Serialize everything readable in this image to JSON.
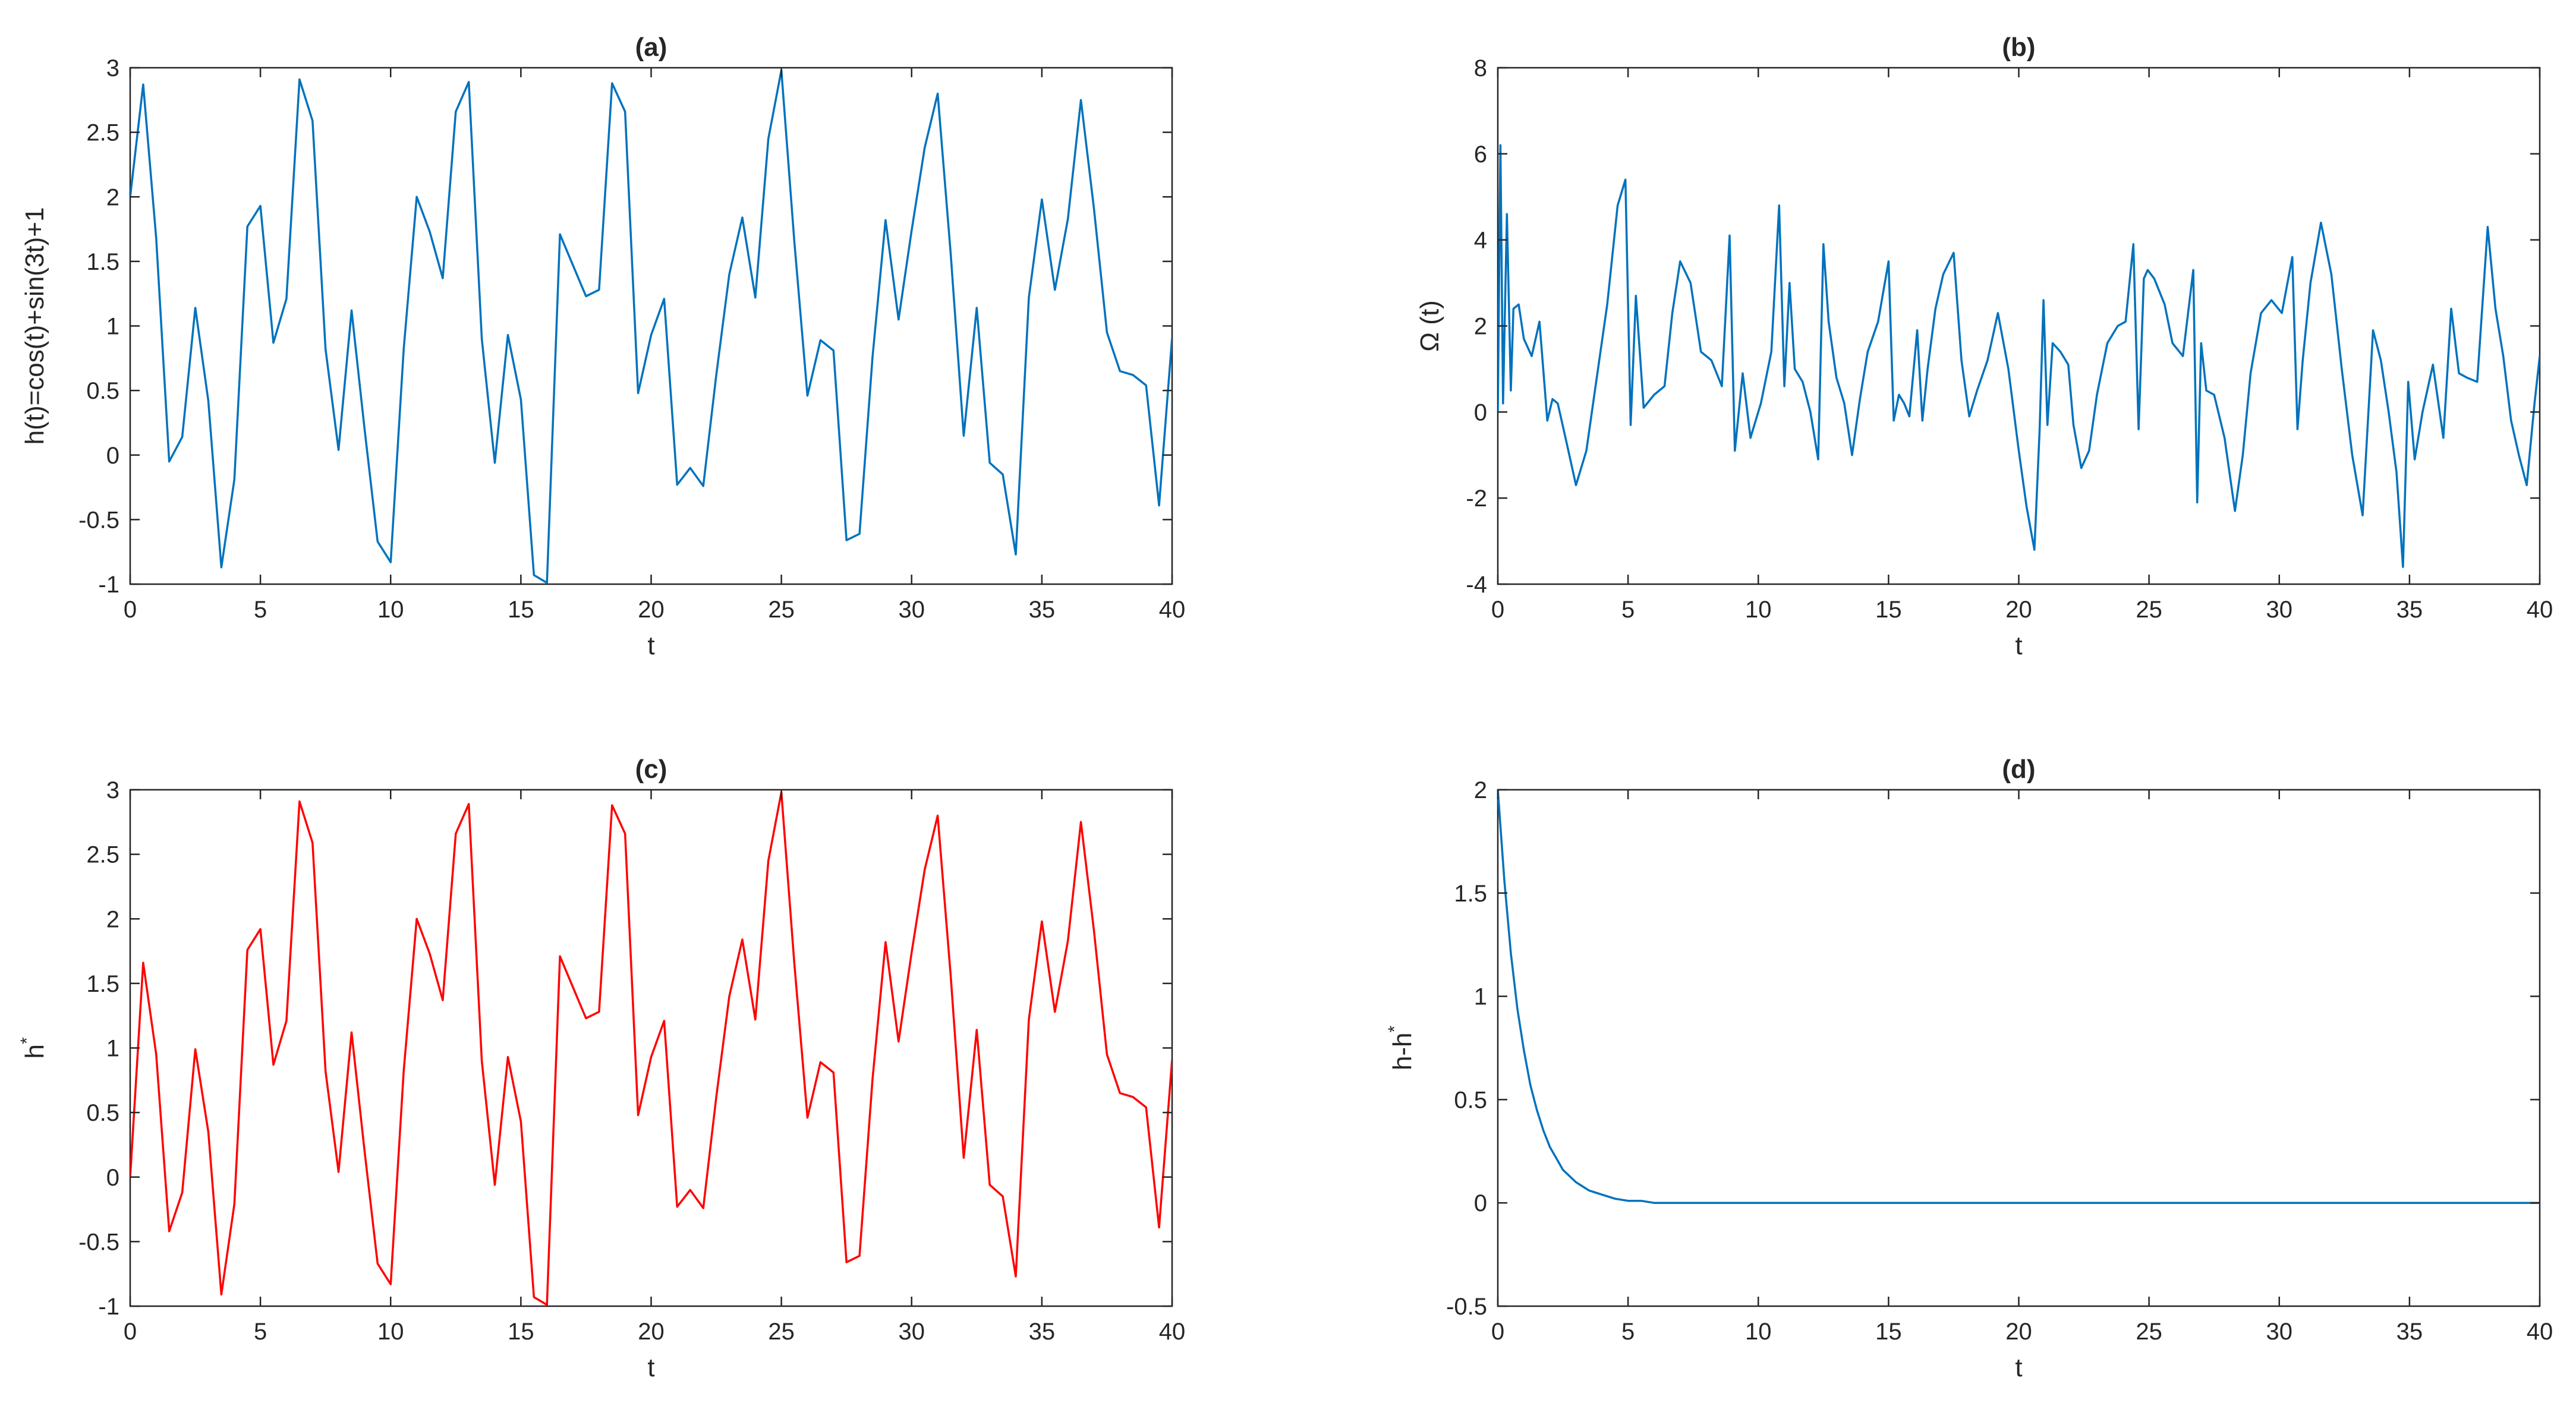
{
  "chart_data": [
    {
      "type": "line",
      "title": "(a)",
      "xlabel": "t",
      "ylabel": "h(t)=cos(t)+sin(3t)+1",
      "ylabel_superscript": "",
      "xlim": [
        0,
        40
      ],
      "ylim": [
        -1,
        3
      ],
      "xticks": [
        "0",
        "5",
        "10",
        "15",
        "20",
        "25",
        "30",
        "35",
        "40"
      ],
      "yticks": [
        "-1",
        "-0.5",
        "0",
        "0.5",
        "1",
        "1.5",
        "2",
        "2.5",
        "3"
      ],
      "grid": false,
      "series": [
        {
          "color": "#0072bd",
          "x": [
            0,
            0.5,
            1,
            1.5,
            2,
            2.5,
            3,
            3.5,
            4,
            4.5,
            5,
            5.5,
            6,
            6.5,
            7,
            7.5,
            8,
            8.5,
            9,
            9.5,
            10,
            10.5,
            11,
            11.5,
            12,
            12.5,
            13,
            13.5,
            14,
            14.5,
            15,
            15.5,
            16,
            16.5,
            17,
            17.5,
            18,
            18.5,
            19,
            19.5,
            20,
            20.5,
            21,
            21.5,
            22,
            22.5,
            23,
            23.5,
            24,
            24.5,
            25,
            25.5,
            26,
            26.5,
            27,
            27.5,
            28,
            28.5,
            29,
            29.5,
            30,
            30.5,
            31,
            31.5,
            32,
            32.5,
            33,
            33.5,
            34,
            34.5,
            35,
            35.5,
            36,
            36.5,
            37,
            37.5,
            38,
            38.5,
            39,
            39.5,
            40
          ],
          "y": [
            2.0,
            2.87,
            1.68,
            -0.05,
            0.14,
            1.14,
            0.42,
            -0.87,
            -0.19,
            1.77,
            1.93,
            0.87,
            1.21,
            2.91,
            2.59,
            0.82,
            0.04,
            1.12,
            0.2,
            -0.67,
            -0.83,
            0.82,
            2.0,
            1.73,
            1.37,
            2.66,
            2.89,
            0.9,
            -0.06,
            0.93,
            0.43,
            -0.93,
            -0.99,
            1.71,
            1.47,
            1.23,
            1.28,
            2.88,
            2.66,
            0.48,
            0.93,
            1.21,
            -0.23,
            -0.1,
            -0.24,
            0.62,
            1.4,
            1.84,
            1.22,
            2.45,
            2.98,
            1.65,
            0.46,
            0.89,
            0.81,
            -0.66,
            -0.61,
            0.76,
            1.82,
            1.05,
            1.74,
            2.38,
            2.8,
            1.56,
            0.15,
            1.14,
            -0.06,
            -0.15,
            -0.77,
            1.22,
            1.98,
            1.28,
            1.83,
            2.75,
            1.91,
            0.95,
            0.65,
            0.62,
            0.54,
            -0.39,
            0.91
          ]
        }
      ]
    },
    {
      "type": "line",
      "title": "(b)",
      "xlabel": "t",
      "ylabel": "Ω (t)",
      "ylabel_superscript": "",
      "xlim": [
        0,
        40
      ],
      "ylim": [
        -4,
        8
      ],
      "xticks": [
        "0",
        "5",
        "10",
        "15",
        "20",
        "25",
        "30",
        "35",
        "40"
      ],
      "yticks": [
        "-4",
        "-2",
        "0",
        "2",
        "4",
        "6",
        "8"
      ],
      "grid": false,
      "series": [
        {
          "color": "#0072bd",
          "x": [
            0,
            0.1,
            0.2,
            0.35,
            0.5,
            0.6,
            0.8,
            1.0,
            1.3,
            1.6,
            1.9,
            2.1,
            2.3,
            2.6,
            3.0,
            3.4,
            3.8,
            4.2,
            4.6,
            4.9,
            5.1,
            5.3,
            5.6,
            6.0,
            6.4,
            6.7,
            7.0,
            7.4,
            7.8,
            8.2,
            8.6,
            8.9,
            9.1,
            9.4,
            9.7,
            10.1,
            10.5,
            10.8,
            11.0,
            11.2,
            11.4,
            11.7,
            12.0,
            12.3,
            12.5,
            12.7,
            13.0,
            13.3,
            13.6,
            13.9,
            14.2,
            14.6,
            15.0,
            15.2,
            15.4,
            15.6,
            15.8,
            16.1,
            16.3,
            16.5,
            16.8,
            17.1,
            17.5,
            17.8,
            18.1,
            18.4,
            18.8,
            19.2,
            19.6,
            20.0,
            20.3,
            20.6,
            20.8,
            20.95,
            21.1,
            21.3,
            21.6,
            21.9,
            22.1,
            22.4,
            22.7,
            23.0,
            23.4,
            23.8,
            24.1,
            24.4,
            24.6,
            24.8,
            24.95,
            25.2,
            25.6,
            25.9,
            26.3,
            26.7,
            26.85,
            27.0,
            27.2,
            27.5,
            27.9,
            28.3,
            28.6,
            28.9,
            29.3,
            29.7,
            30.1,
            30.5,
            30.7,
            30.9,
            31.2,
            31.6,
            32.0,
            32.4,
            32.8,
            33.2,
            33.6,
            33.9,
            34.2,
            34.5,
            34.75,
            34.95,
            35.2,
            35.5,
            35.9,
            36.3,
            36.6,
            36.9,
            37.2,
            37.6,
            38.0,
            38.3,
            38.6,
            38.9,
            39.2,
            39.5,
            39.8,
            40.0
          ],
          "y": [
            0,
            6.2,
            0.2,
            4.6,
            0.5,
            2.4,
            2.5,
            1.7,
            1.3,
            2.1,
            -0.2,
            0.3,
            0.2,
            -0.6,
            -1.7,
            -0.9,
            0.8,
            2.5,
            4.8,
            5.4,
            -0.3,
            2.7,
            0.1,
            0.4,
            0.6,
            2.3,
            3.5,
            3.0,
            1.4,
            1.2,
            0.6,
            4.1,
            -0.9,
            0.9,
            -0.6,
            0.2,
            1.4,
            4.8,
            0.6,
            3.0,
            1.0,
            0.7,
            0.0,
            -1.1,
            3.9,
            2.1,
            0.8,
            0.2,
            -1.0,
            0.3,
            1.4,
            2.1,
            3.5,
            -0.2,
            0.4,
            0.2,
            -0.1,
            1.9,
            -0.2,
            1.0,
            2.4,
            3.2,
            3.7,
            1.2,
            -0.1,
            0.5,
            1.2,
            2.3,
            1.0,
            -0.9,
            -2.2,
            -3.2,
            -0.4,
            2.6,
            -0.3,
            1.6,
            1.4,
            1.1,
            -0.3,
            -1.3,
            -0.9,
            0.4,
            1.6,
            2.0,
            2.1,
            3.9,
            -0.4,
            3.1,
            3.3,
            3.1,
            2.5,
            1.6,
            1.3,
            3.3,
            -2.1,
            1.6,
            0.5,
            0.4,
            -0.6,
            -2.3,
            -1.0,
            0.9,
            2.3,
            2.6,
            2.3,
            3.6,
            -0.4,
            1.2,
            3.0,
            4.4,
            3.2,
            1.0,
            -1.0,
            -2.4,
            1.9,
            1.2,
            0.0,
            -1.4,
            -3.6,
            0.7,
            -1.1,
            0.0,
            1.1,
            -0.6,
            2.4,
            0.9,
            0.8,
            0.7,
            4.3,
            2.4,
            1.3,
            -0.2,
            -1.0,
            -1.7,
            0.2,
            1.3
          ]
        }
      ]
    },
    {
      "type": "line",
      "title": "(c)",
      "xlabel": "t",
      "ylabel": "h",
      "ylabel_superscript": "*",
      "xlim": [
        0,
        40
      ],
      "ylim": [
        -1,
        3
      ],
      "xticks": [
        "0",
        "5",
        "10",
        "15",
        "20",
        "25",
        "30",
        "35",
        "40"
      ],
      "yticks": [
        "-1",
        "-0.5",
        "0",
        "0.5",
        "1",
        "1.5",
        "2",
        "2.5",
        "3"
      ],
      "grid": false,
      "series": [
        {
          "color": "#ff0000",
          "x": [
            0,
            0.5,
            1,
            1.5,
            2,
            2.5,
            3,
            3.5,
            4,
            4.5,
            5,
            5.5,
            6,
            6.5,
            7,
            7.5,
            8,
            8.5,
            9,
            9.5,
            10,
            10.5,
            11,
            11.5,
            12,
            12.5,
            13,
            13.5,
            14,
            14.5,
            15,
            15.5,
            16,
            16.5,
            17,
            17.5,
            18,
            18.5,
            19,
            19.5,
            20,
            20.5,
            21,
            21.5,
            22,
            22.5,
            23,
            23.5,
            24,
            24.5,
            25,
            25.5,
            26,
            26.5,
            27,
            27.5,
            28,
            28.5,
            29,
            29.5,
            30,
            30.5,
            31,
            31.5,
            32,
            32.5,
            33,
            33.5,
            34,
            34.5,
            35,
            35.5,
            36,
            36.5,
            37,
            37.5,
            38,
            38.5,
            39,
            39.5,
            40
          ],
          "y": [
            0.0,
            1.66,
            0.95,
            -0.42,
            -0.12,
            0.99,
            0.35,
            -0.91,
            -0.21,
            1.76,
            1.92,
            0.87,
            1.21,
            2.91,
            2.59,
            0.82,
            0.04,
            1.12,
            0.2,
            -0.67,
            -0.83,
            0.82,
            2.0,
            1.73,
            1.37,
            2.66,
            2.89,
            0.9,
            -0.06,
            0.93,
            0.43,
            -0.93,
            -0.99,
            1.71,
            1.47,
            1.23,
            1.28,
            2.88,
            2.66,
            0.48,
            0.93,
            1.21,
            -0.23,
            -0.1,
            -0.24,
            0.62,
            1.4,
            1.84,
            1.22,
            2.45,
            2.98,
            1.65,
            0.46,
            0.89,
            0.81,
            -0.66,
            -0.61,
            0.76,
            1.82,
            1.05,
            1.74,
            2.38,
            2.8,
            1.56,
            0.15,
            1.14,
            -0.06,
            -0.15,
            -0.77,
            1.22,
            1.98,
            1.28,
            1.83,
            2.75,
            1.91,
            0.95,
            0.65,
            0.62,
            0.54,
            -0.39,
            0.91
          ]
        }
      ]
    },
    {
      "type": "line",
      "title": "(d)",
      "xlabel": "t",
      "ylabel": "h-h",
      "ylabel_superscript": "*",
      "xlim": [
        0,
        40
      ],
      "ylim": [
        -0.5,
        2
      ],
      "xticks": [
        "0",
        "5",
        "10",
        "15",
        "20",
        "25",
        "30",
        "35",
        "40"
      ],
      "yticks": [
        "-0.5",
        "0",
        "0.5",
        "1",
        "1.5",
        "2"
      ],
      "grid": false,
      "series": [
        {
          "color": "#0072bd",
          "x": [
            0,
            0.25,
            0.5,
            0.75,
            1,
            1.25,
            1.5,
            1.75,
            2,
            2.5,
            3,
            3.5,
            4,
            4.5,
            5,
            5.5,
            6,
            7,
            8,
            9,
            10,
            15,
            20,
            25,
            30,
            35,
            40
          ],
          "y": [
            2.0,
            1.56,
            1.21,
            0.94,
            0.74,
            0.57,
            0.45,
            0.35,
            0.27,
            0.16,
            0.1,
            0.06,
            0.04,
            0.02,
            0.01,
            0.01,
            0.0,
            0.0,
            0.0,
            0.0,
            0.0,
            0.0,
            0.0,
            0.0,
            0.0,
            0.0,
            0.0
          ]
        }
      ]
    }
  ]
}
